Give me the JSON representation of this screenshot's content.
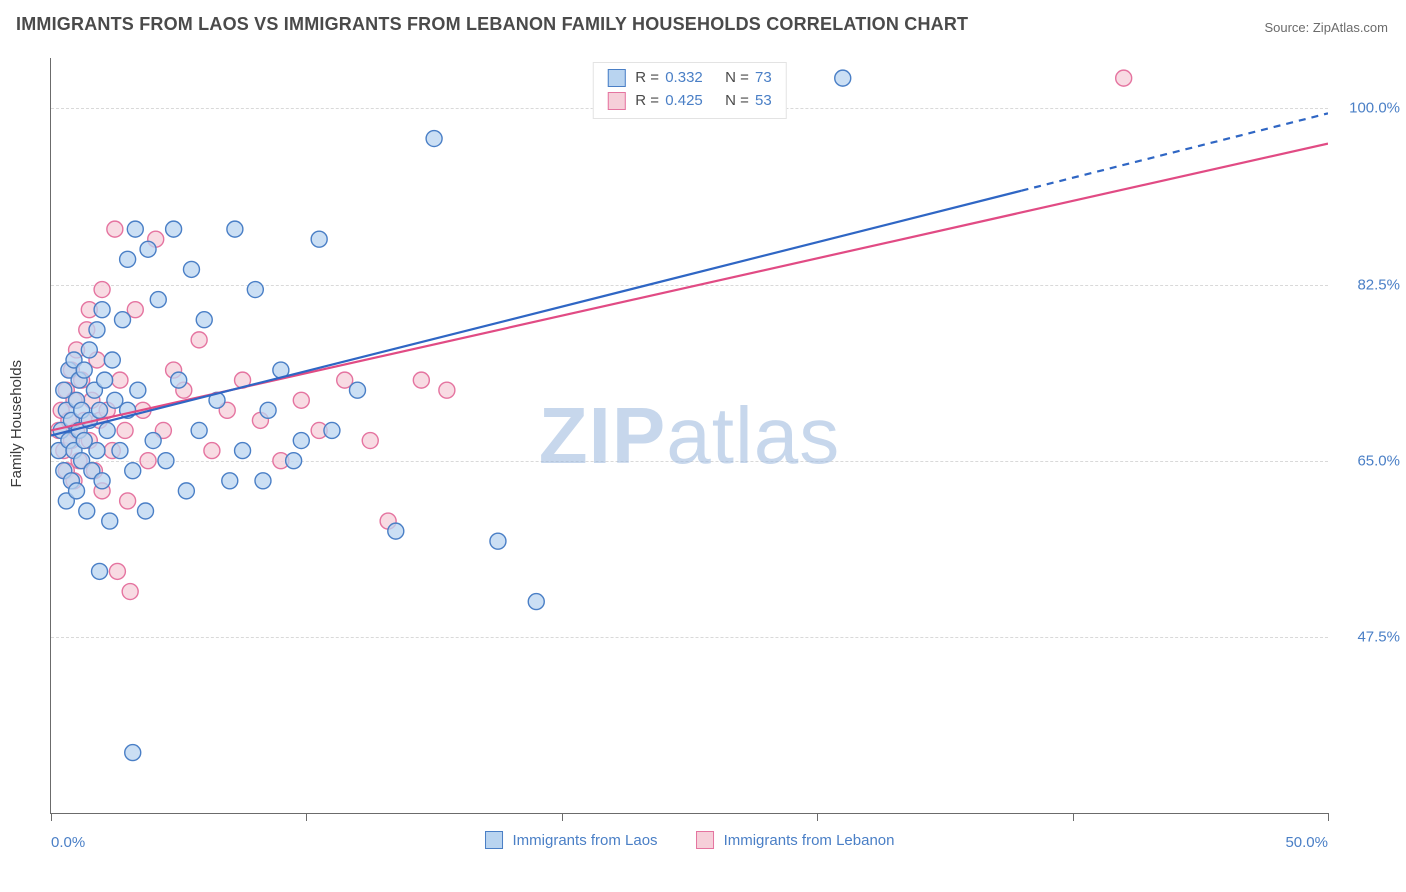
{
  "title": "IMMIGRANTS FROM LAOS VS IMMIGRANTS FROM LEBANON FAMILY HOUSEHOLDS CORRELATION CHART",
  "source_label": "Source: ",
  "source_name": "ZipAtlas.com",
  "watermark_zip": "ZIP",
  "watermark_atlas": "atlas",
  "y_axis_title": "Family Households",
  "chart": {
    "type": "scatter+regression",
    "background_color": "#ffffff",
    "grid_color": "#d9d9d9",
    "axis_color": "#6b6b6b",
    "tick_label_color": "#4a7fc6",
    "tick_fontsize": 15,
    "title_fontsize": 18,
    "xlim": [
      0,
      50
    ],
    "ylim": [
      30,
      105
    ],
    "x_ticks": [
      0,
      10,
      20,
      30,
      40,
      50
    ],
    "x_tick_labels": {
      "0": "0.0%",
      "50": "50.0%"
    },
    "y_ticks": [
      47.5,
      65.0,
      82.5,
      100.0
    ],
    "y_tick_labels": [
      "47.5%",
      "65.0%",
      "82.5%",
      "100.0%"
    ],
    "marker_radius": 8,
    "marker_stroke_width": 1.4,
    "line_width": 2.2,
    "series": [
      {
        "key": "laos",
        "label": "Immigrants from Laos",
        "fill_color": "#b9d4f0",
        "stroke_color": "#4a7fc6",
        "line_color": "#2f66c4",
        "r_label": "R = ",
        "r_value": "0.332",
        "n_label": "N = ",
        "n_value": "73",
        "regression": {
          "x1": 0,
          "y1": 67.5,
          "x2": 50,
          "y2": 99.5,
          "solid_until_x": 38
        },
        "points": [
          [
            0.3,
            66
          ],
          [
            0.4,
            68
          ],
          [
            0.5,
            64
          ],
          [
            0.5,
            72
          ],
          [
            0.6,
            61
          ],
          [
            0.6,
            70
          ],
          [
            0.7,
            74
          ],
          [
            0.7,
            67
          ],
          [
            0.8,
            69
          ],
          [
            0.8,
            63
          ],
          [
            0.9,
            75
          ],
          [
            0.9,
            66
          ],
          [
            1.0,
            71
          ],
          [
            1.0,
            62
          ],
          [
            1.1,
            68
          ],
          [
            1.1,
            73
          ],
          [
            1.2,
            65
          ],
          [
            1.2,
            70
          ],
          [
            1.3,
            74
          ],
          [
            1.3,
            67
          ],
          [
            1.4,
            60
          ],
          [
            1.5,
            76
          ],
          [
            1.5,
            69
          ],
          [
            1.6,
            64
          ],
          [
            1.7,
            72
          ],
          [
            1.8,
            66
          ],
          [
            1.8,
            78
          ],
          [
            1.9,
            70
          ],
          [
            2.0,
            80
          ],
          [
            2.0,
            63
          ],
          [
            2.1,
            73
          ],
          [
            2.2,
            68
          ],
          [
            2.3,
            59
          ],
          [
            2.4,
            75
          ],
          [
            2.5,
            71
          ],
          [
            2.7,
            66
          ],
          [
            2.8,
            79
          ],
          [
            3.0,
            85
          ],
          [
            3.0,
            70
          ],
          [
            3.2,
            64
          ],
          [
            3.3,
            88
          ],
          [
            3.4,
            72
          ],
          [
            3.7,
            60
          ],
          [
            3.8,
            86
          ],
          [
            4.0,
            67
          ],
          [
            4.2,
            81
          ],
          [
            4.5,
            65
          ],
          [
            4.8,
            88
          ],
          [
            5.0,
            73
          ],
          [
            5.3,
            62
          ],
          [
            5.5,
            84
          ],
          [
            5.8,
            68
          ],
          [
            6.0,
            79
          ],
          [
            6.5,
            71
          ],
          [
            7.0,
            63
          ],
          [
            7.2,
            88
          ],
          [
            7.5,
            66
          ],
          [
            8.0,
            82
          ],
          [
            8.3,
            63
          ],
          [
            8.5,
            70
          ],
          [
            9.0,
            74
          ],
          [
            9.5,
            65
          ],
          [
            9.8,
            67
          ],
          [
            10.5,
            87
          ],
          [
            11.0,
            68
          ],
          [
            12.0,
            72
          ],
          [
            13.5,
            58
          ],
          [
            15.0,
            97
          ],
          [
            17.5,
            57
          ],
          [
            19.0,
            51
          ],
          [
            31.0,
            103
          ],
          [
            3.2,
            36
          ],
          [
            1.9,
            54
          ]
        ]
      },
      {
        "key": "lebanon",
        "label": "Immigrants from Lebanon",
        "fill_color": "#f6cfd9",
        "stroke_color": "#e574a0",
        "line_color": "#e14b84",
        "r_label": "R = ",
        "r_value": "0.425",
        "n_label": "N = ",
        "n_value": "53",
        "regression": {
          "x1": 0,
          "y1": 68.0,
          "x2": 50,
          "y2": 96.5,
          "solid_until_x": 50
        },
        "points": [
          [
            0.3,
            68
          ],
          [
            0.4,
            70
          ],
          [
            0.5,
            66
          ],
          [
            0.6,
            72
          ],
          [
            0.6,
            64
          ],
          [
            0.7,
            69
          ],
          [
            0.8,
            74
          ],
          [
            0.8,
            67
          ],
          [
            0.9,
            71
          ],
          [
            0.9,
            63
          ],
          [
            1.0,
            76
          ],
          [
            1.0,
            68
          ],
          [
            1.1,
            65
          ],
          [
            1.2,
            73
          ],
          [
            1.3,
            69
          ],
          [
            1.4,
            78
          ],
          [
            1.5,
            67
          ],
          [
            1.5,
            80
          ],
          [
            1.6,
            71
          ],
          [
            1.7,
            64
          ],
          [
            1.8,
            75
          ],
          [
            1.9,
            69
          ],
          [
            2.0,
            62
          ],
          [
            2.0,
            82
          ],
          [
            2.2,
            70
          ],
          [
            2.4,
            66
          ],
          [
            2.5,
            88
          ],
          [
            2.7,
            73
          ],
          [
            2.9,
            68
          ],
          [
            3.0,
            61
          ],
          [
            3.3,
            80
          ],
          [
            3.6,
            70
          ],
          [
            3.8,
            65
          ],
          [
            4.1,
            87
          ],
          [
            4.4,
            68
          ],
          [
            4.8,
            74
          ],
          [
            5.2,
            72
          ],
          [
            5.8,
            77
          ],
          [
            6.3,
            66
          ],
          [
            6.9,
            70
          ],
          [
            7.5,
            73
          ],
          [
            8.2,
            69
          ],
          [
            9.0,
            65
          ],
          [
            9.8,
            71
          ],
          [
            10.5,
            68
          ],
          [
            11.5,
            73
          ],
          [
            12.5,
            67
          ],
          [
            13.2,
            59
          ],
          [
            14.5,
            73
          ],
          [
            15.5,
            72
          ],
          [
            2.6,
            54
          ],
          [
            3.1,
            52
          ],
          [
            42.0,
            103
          ]
        ]
      }
    ]
  }
}
